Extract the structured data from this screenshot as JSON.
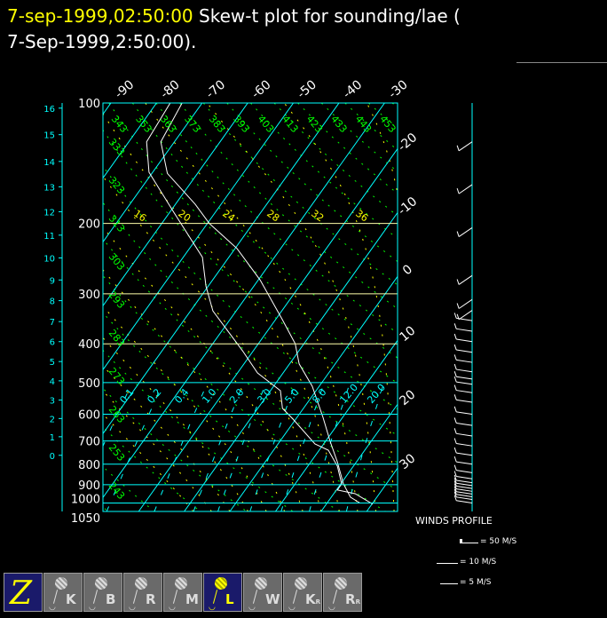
{
  "title": {
    "date_highlight": "7-sep-1999,02:50:00",
    "text": " Skew-t plot for sounding/lae (",
    "line2": "7-Sep-1999,2:50:00)."
  },
  "colors": {
    "title_highlight": "#ffff00",
    "isobar_isotherm": "#00ffff",
    "dry_adiabat": "#00ff00",
    "moist_adiabat": "#ffff00",
    "mixing_ratio": "#00ffff",
    "sounding": "#ffffff",
    "selected_button": "#1a1a6a"
  },
  "chart_data": {
    "type": "line",
    "subtype": "skew-t log-p",
    "pressure_ticks": [
      "100",
      "200",
      "300",
      "400",
      "500",
      "600",
      "700",
      "800",
      "900",
      "1000",
      "1050"
    ],
    "height_km_ticks": [
      "16",
      "15",
      "14",
      "13",
      "12",
      "11",
      "10",
      "9",
      "8",
      "7",
      "6",
      "5",
      "4",
      "3",
      "2",
      "1",
      "0"
    ],
    "height_km_pressure": [
      103,
      120,
      140,
      162,
      187,
      214,
      244,
      277,
      312,
      352,
      395,
      443,
      495,
      553,
      615,
      683,
      760
    ],
    "temperature_labels_top": [
      "-90",
      "-80",
      "-70",
      "-60",
      "-50",
      "-40",
      "-30"
    ],
    "temperature_labels_right": [
      "-20",
      "-10",
      "0",
      "10",
      "20",
      "30"
    ],
    "dry_adiabat_labels": [
      "343",
      "353",
      "363",
      "373",
      "383",
      "393",
      "403",
      "413",
      "423",
      "433",
      "443",
      "453",
      "333",
      "323",
      "313",
      "303",
      "293",
      "283",
      "273",
      "263",
      "253",
      "243"
    ],
    "moist_adiabat_labels": [
      "16",
      "20",
      "24",
      "28",
      "32",
      "36"
    ],
    "mixing_ratio_labels": [
      "0.1",
      "0.2",
      "0.4",
      "1.0",
      "2.0",
      "3.0",
      "5.0",
      "8.0",
      "12.0",
      "20.0"
    ],
    "ylim_hpa": [
      1050,
      100
    ],
    "y_scale": "log",
    "series": [
      {
        "points_p_t": [
          [
            100,
            -74.4
          ],
          [
            125,
            -73.0
          ],
          [
            150,
            -66.6
          ],
          [
            179,
            -55.7
          ],
          [
            200,
            -49.6
          ],
          [
            231,
            -39.6
          ],
          [
            277,
            -29.6
          ],
          [
            348,
            -18.5
          ],
          [
            400,
            -11.9
          ],
          [
            449,
            -7.9
          ],
          [
            511,
            -1.5
          ],
          [
            611,
            5.7
          ],
          [
            701,
            11.0
          ],
          [
            789,
            15.8
          ],
          [
            896,
            20.6
          ],
          [
            967,
            24.2
          ],
          [
            1000,
            27.2
          ]
        ]
      },
      {
        "points_p_t": [
          [
            100,
            -77.0
          ],
          [
            125,
            -76.1
          ],
          [
            149,
            -70.8
          ],
          [
            188,
            -59.0
          ],
          [
            243,
            -45.8
          ],
          [
            287,
            -40.5
          ],
          [
            331,
            -35.1
          ],
          [
            416,
            -22.4
          ],
          [
            473,
            -15.6
          ],
          [
            524,
            -7.8
          ],
          [
            580,
            -4.6
          ],
          [
            617,
            -0.6
          ],
          [
            712,
            8.1
          ],
          [
            738,
            12.0
          ],
          [
            809,
            16.5
          ],
          [
            896,
            20.2
          ],
          [
            928,
            20.2
          ],
          [
            948,
            24.7
          ],
          [
            1007,
            30.2
          ]
        ]
      }
    ]
  },
  "winds": {
    "title": "WINDS PROFILE",
    "legend": [
      "= 50 M/S",
      "= 10 M/S",
      "= 5 M/S"
    ],
    "barb_pressures": [
      125,
      160,
      205,
      270,
      310,
      330,
      350,
      372,
      395,
      420,
      445,
      470,
      490,
      505,
      530,
      560,
      600,
      640,
      680,
      720,
      760,
      800,
      840,
      870,
      890,
      905,
      920,
      935,
      950,
      965,
      980,
      1000
    ]
  },
  "toolbar": {
    "buttons": [
      {
        "name": "zoom",
        "label": "Z",
        "selected": true
      },
      {
        "name": "station-k",
        "label": "K",
        "selected": false
      },
      {
        "name": "station-b",
        "label": "B",
        "selected": false
      },
      {
        "name": "station-r",
        "label": "R",
        "selected": false
      },
      {
        "name": "station-m",
        "label": "M",
        "selected": false
      },
      {
        "name": "station-l",
        "label": "L",
        "selected": true
      },
      {
        "name": "station-w",
        "label": "W",
        "selected": false
      },
      {
        "name": "station-kr",
        "label": "K",
        "sub": "R",
        "selected": false
      },
      {
        "name": "station-rr",
        "label": "R",
        "sub": "R",
        "selected": false
      }
    ]
  }
}
